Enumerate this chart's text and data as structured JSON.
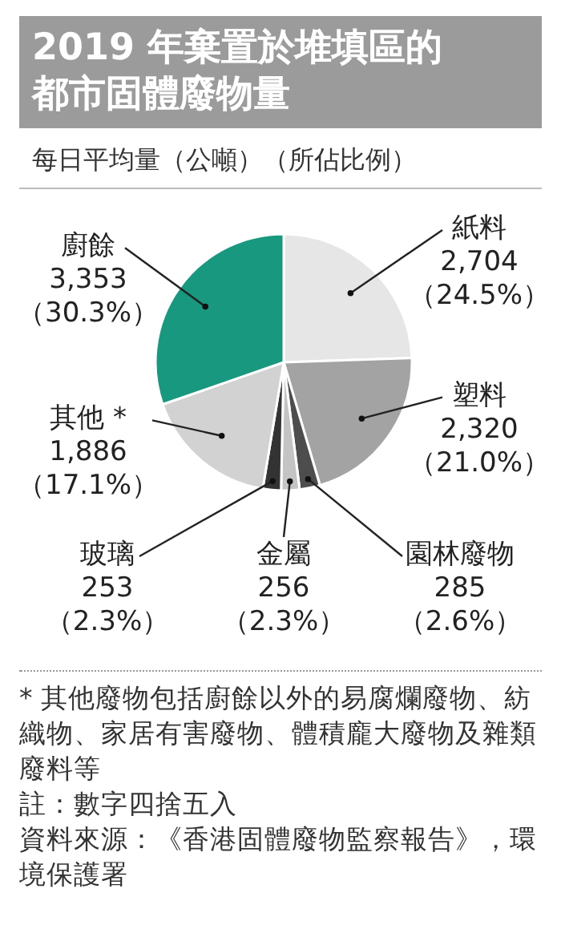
{
  "chart_data": {
    "type": "pie",
    "title": "2019 年棄置於堆填區的都市固體廢物量",
    "subtitle": "每日平均量（公噸）（所佔比例）",
    "categories": [
      "紙料",
      "塑料",
      "園林廢物",
      "金屬",
      "玻璃",
      "其他 *",
      "廚餘"
    ],
    "values": [
      2704,
      2320,
      285,
      256,
      253,
      1886,
      3353
    ],
    "value_labels": [
      "2,704\n（24.5%）",
      "2,320\n（21.0%）",
      "285\n（2.6%）",
      "256\n（2.3%）",
      "253\n（2.3%）",
      "1,886\n（17.1%）",
      "3,353\n（30.3%）"
    ],
    "colors": [
      "#e6e6e6",
      "#a3a3a3",
      "#4d4d4d",
      "#c4c4c4",
      "#333333",
      "#d2d2d2",
      "#17987f"
    ],
    "annotations": [
      "* 其他廢物包括廚餘以外的易腐爛廢物、紡織物、家居有害廢物、體積龐大廢物及雜類廢料等",
      "註：數字四捨五入",
      "資料來源：《香港固體廢物監察報告》，環境保護署"
    ]
  }
}
